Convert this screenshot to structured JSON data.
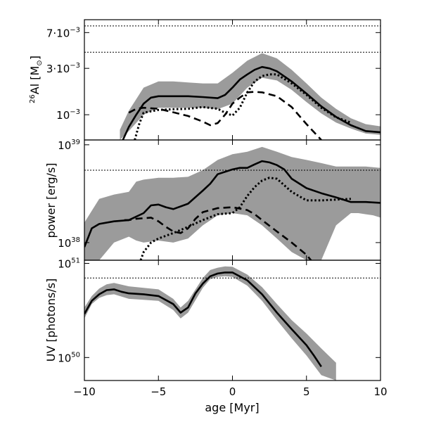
{
  "chart_data": {
    "type": "area",
    "x_axis": {
      "label": "age [Myr]",
      "range": [
        -10,
        10
      ],
      "ticks": [
        -10,
        -5,
        0,
        5,
        10
      ],
      "tick_labels": [
        "−10",
        "−5",
        "0",
        "5",
        "10"
      ]
    },
    "panels": [
      {
        "id": "al26",
        "ylabel": {
          "sup": "26",
          "main": "Al [M",
          "sub": "⊙",
          "close": "]"
        },
        "yscale": "log",
        "ylim": [
          0.00055,
          0.0095
        ],
        "ticks": [
          {
            "value": 0.001,
            "base": "10",
            "exp": "−3",
            "prefix": ""
          },
          {
            "value": 0.003,
            "base": "10",
            "exp": "−3",
            "prefix": "3·"
          },
          {
            "value": 0.007,
            "base": "10",
            "exp": "−3",
            "prefix": "7·"
          }
        ],
        "hlines": [
          0.0082,
          0.0044
        ],
        "band": {
          "x": [
            -7.6,
            -7.0,
            -6.0,
            -5.0,
            -4.0,
            -3.0,
            -2.0,
            -1.0,
            0.0,
            1.0,
            2.0,
            3.0,
            4.0,
            5.0,
            6.0,
            7.0,
            8.0,
            9.0,
            10.0
          ],
          "lower": [
            0.00055,
            0.00068,
            0.001,
            0.00118,
            0.00118,
            0.00118,
            0.00118,
            0.00114,
            0.0013,
            0.0019,
            0.0024,
            0.00225,
            0.0018,
            0.00135,
            0.00103,
            0.00083,
            0.00072,
            0.00064,
            0.00062
          ],
          "upper": [
            0.0007,
            0.0011,
            0.0019,
            0.0022,
            0.0022,
            0.00215,
            0.0021,
            0.0021,
            0.0027,
            0.0036,
            0.0043,
            0.0038,
            0.0029,
            0.0021,
            0.0015,
            0.00115,
            0.00092,
            0.0008,
            0.00076
          ]
        },
        "series": [
          {
            "style": "solid",
            "x": [
              -7.4,
              -7.0,
              -6.5,
              -6.0,
              -5.5,
              -5.0,
              -4.0,
              -3.0,
              -2.0,
              -1.0,
              -0.5,
              0.0,
              0.5,
              1.0,
              1.5,
              2.0,
              2.5,
              3.0,
              4.0,
              5.0,
              6.0,
              7.0,
              8.0,
              9.0,
              10.0
            ],
            "y": [
              0.00055,
              0.00075,
              0.001,
              0.0013,
              0.0015,
              0.00155,
              0.00155,
              0.00155,
              0.00152,
              0.00148,
              0.0016,
              0.0019,
              0.0023,
              0.0026,
              0.0029,
              0.0031,
              0.003,
              0.0028,
              0.0022,
              0.00165,
              0.00122,
              0.00095,
              0.00078,
              0.00068,
              0.00066
            ]
          },
          {
            "style": "dashed",
            "x": [
              -7.0,
              -6.5,
              -6.0,
              -5.0,
              -4.0,
              -3.0,
              -2.0,
              -1.5,
              -1.0,
              -0.5,
              0.0,
              0.5,
              1.0,
              1.5,
              2.0,
              3.0,
              4.0,
              5.0,
              6.0
            ],
            "y": [
              0.00105,
              0.00115,
              0.00118,
              0.00115,
              0.00106,
              0.00097,
              0.00085,
              0.00078,
              0.00082,
              0.001,
              0.0013,
              0.0015,
              0.0017,
              0.00172,
              0.0017,
              0.00155,
              0.0012,
              0.0008,
              0.00055
            ]
          },
          {
            "style": "dotted",
            "x": [
              -6.6,
              -6.3,
              -6.0,
              -5.0,
              -4.0,
              -3.0,
              -2.0,
              -1.0,
              -0.5,
              0.0,
              0.5,
              1.0,
              1.5,
              2.0,
              2.5,
              3.0,
              4.0,
              5.0,
              6.0,
              7.0,
              8.0
            ],
            "y": [
              0.00055,
              0.0008,
              0.00105,
              0.00112,
              0.00114,
              0.00115,
              0.0012,
              0.00115,
              0.00105,
              0.00098,
              0.00118,
              0.0017,
              0.0022,
              0.0025,
              0.0026,
              0.0026,
              0.0021,
              0.0016,
              0.00118,
              0.00094,
              0.00083
            ]
          }
        ]
      },
      {
        "id": "power",
        "ylabel": {
          "main": "power [erg/s]"
        },
        "yscale": "log",
        "ylim": [
          6.6e+37,
          1.12e+39
        ],
        "ticks": [
          {
            "value": 1e+38,
            "base": "10",
            "exp": "38",
            "prefix": ""
          },
          {
            "value": 1e+39,
            "base": "10",
            "exp": "39",
            "prefix": ""
          }
        ],
        "hlines": [
          5.5e+38
        ],
        "band": {
          "x": [
            -10.0,
            -9.0,
            -8.0,
            -7.0,
            -6.5,
            -6.0,
            -5.0,
            -4.0,
            -3.0,
            -2.0,
            -1.0,
            0.0,
            1.0,
            2.0,
            3.0,
            4.0,
            5.0,
            6.0,
            7.0,
            8.0,
            8.5,
            9.0,
            9.5,
            10.0
          ],
          "lower": [
            6.6e+37,
            6.6e+37,
            1e+38,
            1.15e+38,
            1.05e+38,
            1e+38,
            1.05e+38,
            1e+38,
            1.1e+38,
            1.5e+38,
            1.9e+38,
            2e+38,
            1.9e+38,
            1.5e+38,
            1.1e+38,
            8e+37,
            6.6e+37,
            6.6e+37,
            1.5e+38,
            2e+38,
            2e+38,
            1.95e+38,
            1.9e+38,
            1.8e+38
          ],
          "upper": [
            1.6e+38,
            2.8e+38,
            3.1e+38,
            3.3e+38,
            4.2e+38,
            4.4e+38,
            4.6e+38,
            4.6e+38,
            4.7e+38,
            5.5e+38,
            7e+38,
            8e+38,
            8.5e+38,
            9.5e+38,
            8.5e+38,
            7.5e+38,
            7e+38,
            6.5e+38,
            6e+38,
            6e+38,
            6e+38,
            6e+38,
            5.9e+38,
            5.8e+38
          ]
        },
        "series": [
          {
            "style": "solid",
            "x": [
              -10.0,
              -9.5,
              -9.0,
              -8.0,
              -7.0,
              -6.0,
              -5.5,
              -5.0,
              -4.5,
              -4.0,
              -3.0,
              -2.0,
              -1.5,
              -1.0,
              0.0,
              0.5,
              1.0,
              1.5,
              2.0,
              2.5,
              3.0,
              3.5,
              4.0,
              5.0,
              6.0,
              7.0,
              8.0,
              9.0,
              10.0
            ],
            "y": [
              9e+37,
              1.4e+38,
              1.55e+38,
              1.65e+38,
              1.7e+38,
              2e+38,
              2.4e+38,
              2.45e+38,
              2.3e+38,
              2.2e+38,
              2.5e+38,
              3.4e+38,
              4e+38,
              5e+38,
              5.6e+38,
              5.8e+38,
              5.8e+38,
              6.3e+38,
              6.8e+38,
              6.6e+38,
              6.2e+38,
              5.6e+38,
              4.5e+38,
              3.6e+38,
              3.2e+38,
              2.9e+38,
              2.6e+38,
              2.6e+38,
              2.55e+38
            ]
          },
          {
            "style": "dashed",
            "x": [
              -7.3,
              -7.0,
              -6.5,
              -5.5,
              -5.0,
              -4.5,
              -4.0,
              -3.5,
              -3.0,
              -2.5,
              -2.0,
              -1.0,
              0.0,
              1.0,
              1.5,
              2.0,
              3.0,
              4.0,
              5.0,
              5.3
            ],
            "y": [
              1.7e+38,
              1.7e+38,
              1.75e+38,
              1.8e+38,
              1.65e+38,
              1.45e+38,
              1.3e+38,
              1.25e+38,
              1.4e+38,
              1.75e+38,
              2.05e+38,
              2.25e+38,
              2.3e+38,
              2.15e+38,
              1.95e+38,
              1.7e+38,
              1.3e+38,
              1e+38,
              7.5e+37,
              6.6e+37
            ]
          },
          {
            "style": "dotted",
            "x": [
              -6.2,
              -6.0,
              -5.5,
              -5.0,
              -4.0,
              -3.0,
              -2.0,
              -1.0,
              0.0,
              0.5,
              1.0,
              1.5,
              2.0,
              2.5,
              3.0,
              4.0,
              5.0,
              6.0,
              7.0,
              8.0
            ],
            "y": [
              6.6e+37,
              8e+37,
              1e+38,
              1.1e+38,
              1.25e+38,
              1.45e+38,
              1.7e+38,
              1.95e+38,
              2e+38,
              2.3e+38,
              3e+38,
              3.7e+38,
              4.3e+38,
              4.6e+38,
              4.5e+38,
              3.3e+38,
              2.7e+38,
              2.7e+38,
              2.75e+38,
              2.8e+38
            ]
          }
        ]
      },
      {
        "id": "uv",
        "ylabel": {
          "main": "UV [photons/s]"
        },
        "yscale": "log",
        "ylim": [
          5.7e+49,
          1.08e+51
        ],
        "ticks": [
          {
            "value": 1e+50,
            "base": "10",
            "exp": "50",
            "prefix": ""
          },
          {
            "value": 1e+51,
            "base": "10",
            "exp": "51",
            "prefix": ""
          }
        ],
        "hlines": [
          7e+50
        ],
        "band": {
          "x": [
            -10.0,
            -9.5,
            -9.0,
            -8.5,
            -8.0,
            -7.0,
            -6.0,
            -5.0,
            -4.0,
            -3.5,
            -3.0,
            -2.0,
            -1.5,
            -1.0,
            -0.5,
            0.0,
            1.0,
            2.0,
            3.0,
            4.0,
            5.0,
            6.0,
            7.0
          ],
          "lower": [
            2.6e+50,
            3.7e+50,
            4.3e+50,
            4.6e+50,
            4.7e+50,
            4.2e+50,
            4.1e+50,
            4e+50,
            3.2e+50,
            2.6e+50,
            3e+50,
            5.5e+50,
            6.8e+50,
            7.2e+50,
            7.3e+50,
            7.2e+50,
            5.8e+50,
            4e+50,
            2.5e+50,
            1.6e+50,
            1.05e+50,
            6.5e+49,
            5.7e+49
          ],
          "upper": [
            3.4e+50,
            4.5e+50,
            5.4e+50,
            6e+50,
            6.2e+50,
            5.7e+50,
            5.5e+50,
            5.3e+50,
            4.2e+50,
            3.4e+50,
            4e+50,
            7e+50,
            8.5e+50,
            9e+50,
            9.3e+50,
            9.2e+50,
            7.6e+50,
            5.6e+50,
            3.7e+50,
            2.5e+50,
            1.8e+50,
            1.25e+50,
            8.8e+49
          ]
        },
        "series": [
          {
            "style": "solid",
            "x": [
              -10.0,
              -9.5,
              -9.0,
              -8.5,
              -8.0,
              -7.5,
              -7.0,
              -6.0,
              -5.0,
              -4.0,
              -3.5,
              -3.0,
              -2.5,
              -2.0,
              -1.5,
              -1.0,
              -0.5,
              0.0,
              1.0,
              2.0,
              3.0,
              4.0,
              5.0,
              5.5,
              6.0
            ],
            "y": [
              2.9e+50,
              4e+50,
              4.7e+50,
              5.2e+50,
              5.3e+50,
              5e+50,
              4.8e+50,
              4.7e+50,
              4.5e+50,
              3.7e+50,
              3e+50,
              3.4e+50,
              4.8e+50,
              6.1e+50,
              7.3e+50,
              7.8e+50,
              8e+50,
              8e+50,
              6.6e+50,
              4.7e+50,
              3e+50,
              2e+50,
              1.35e+50,
              1.05e+50,
              8e+49
            ]
          }
        ]
      }
    ]
  }
}
